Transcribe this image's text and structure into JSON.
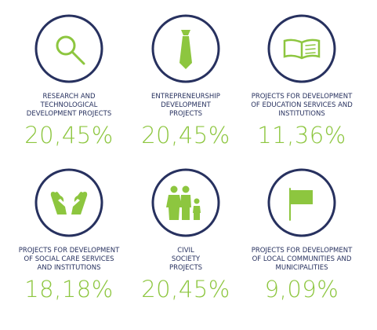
{
  "items": [
    {
      "label": [
        "RESEARCH AND",
        "TECHNOLOGICAL",
        "DEVELOPMENT PROJECTS"
      ],
      "value": "20,45%"
    },
    {
      "label": [
        "ENTREPRENEURSHIP",
        "DEVELOPMENT",
        "PROJECTS"
      ],
      "value": "20,45%"
    },
    {
      "label": [
        "PROJECTS FOR DEVELOPMENT",
        "OF EDUCATION SERVICES AND",
        "INSTITUTIONS"
      ],
      "value": "11,36%"
    },
    {
      "label": [
        "PROJECTS FOR DEVELOPMENT",
        "OF SOCIAL CARE SERVICES",
        "AND INSTITUTIONS"
      ],
      "value": "18,18%"
    },
    {
      "label": [
        "CIVIL",
        "SOCIETY",
        "PROJECTS"
      ],
      "value": "20,45%"
    },
    {
      "label": [
        "PROJECTS FOR DEVELOPMENT",
        "OF LOCAL COMMUNITIES AND",
        "MUNICIPALITIES"
      ],
      "value": "9,09%"
    }
  ]
}
